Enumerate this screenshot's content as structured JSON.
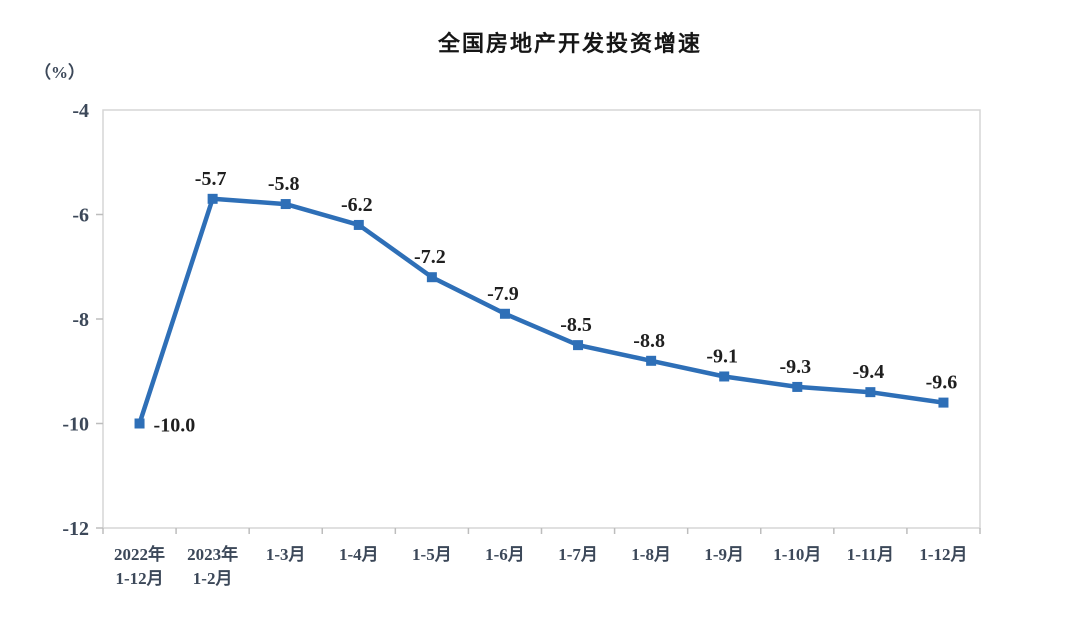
{
  "title": "全国房地产开发投资增速",
  "unit_label": "（%）",
  "chart_data": {
    "type": "line",
    "title": "全国房地产开发投资增速",
    "ylabel": "（%）",
    "xlabel": "",
    "categories": [
      [
        "2022年",
        "1-12月"
      ],
      [
        "2023年",
        "1-2月"
      ],
      [
        "1-3月"
      ],
      [
        "1-4月"
      ],
      [
        "1-5月"
      ],
      [
        "1-6月"
      ],
      [
        "1-7月"
      ],
      [
        "1-8月"
      ],
      [
        "1-9月"
      ],
      [
        "1-10月"
      ],
      [
        "1-11月"
      ],
      [
        "1-12月"
      ]
    ],
    "values": [
      -10.0,
      -5.7,
      -5.8,
      -6.2,
      -7.2,
      -7.9,
      -8.5,
      -8.8,
      -9.1,
      -9.3,
      -9.4,
      -9.6
    ],
    "data_labels": [
      "-10.0",
      "-5.7",
      "-5.8",
      "-6.2",
      "-7.2",
      "-7.9",
      "-8.5",
      "-8.8",
      "-9.1",
      "-9.3",
      "-9.4",
      "-9.6"
    ],
    "ylim": [
      -12,
      -4
    ],
    "y_ticks": [
      -4,
      -6,
      -8,
      -10,
      -12
    ],
    "grid": false,
    "legend": "none",
    "line_color": "#2e6fb7",
    "marker_color": "#2e6fb7",
    "plot_border_color": "#d6d6d6",
    "tick_color": "#bdbdbd",
    "axis_text_color": "#3c4859",
    "label_text_color": "#1f1f1f",
    "background_color": "#ffffff"
  }
}
